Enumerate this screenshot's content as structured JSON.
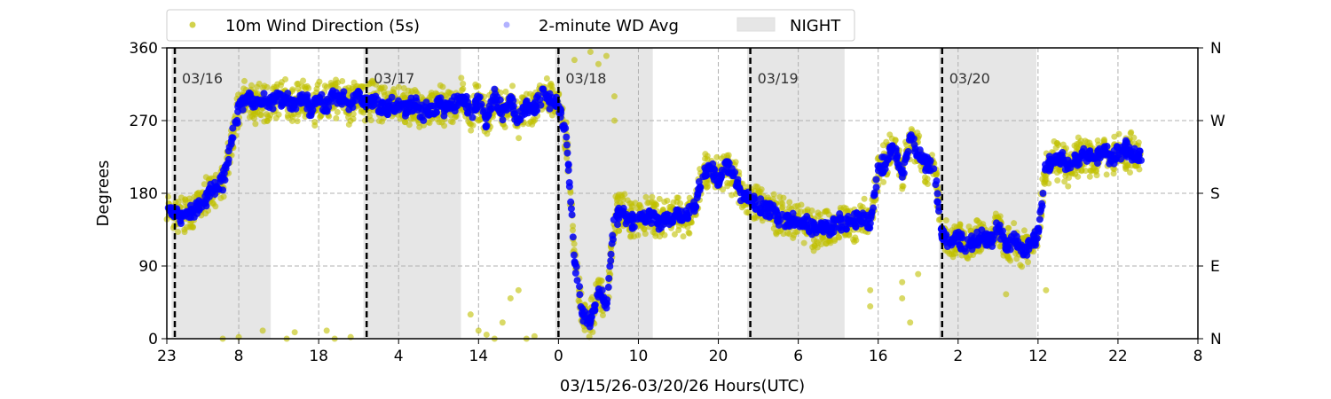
{
  "chart_data": {
    "type": "scatter",
    "title": "",
    "xlabel": "03/15/26-03/20/26  Hours(UTC)",
    "ylabel": "Degrees",
    "x_units": "hours since 03/15 23:00 UTC",
    "xlim": [
      0,
      129
    ],
    "ylim": [
      0,
      360
    ],
    "x_ticks": [
      0,
      9,
      19,
      29,
      39,
      49,
      59,
      69,
      79,
      89,
      99,
      109,
      119,
      129
    ],
    "x_tick_labels": [
      "23",
      "8",
      "18",
      "4",
      "14",
      "0",
      "10",
      "20",
      "6",
      "16",
      "2",
      "12",
      "22",
      "8"
    ],
    "y_ticks": [
      0,
      90,
      180,
      270,
      360
    ],
    "y_tick_labels": [
      "0",
      "90",
      "180",
      "270",
      "360"
    ],
    "y2_tick_labels": [
      "N",
      "E",
      "S",
      "W",
      "N"
    ],
    "grid": true,
    "legend_placement": "top-center, above plot",
    "legend": [
      {
        "label": "10m Wind Direction (5s)",
        "color": "#bfbf00"
      },
      {
        "label": "2-minute WD Avg",
        "color": "#0000ff"
      },
      {
        "label": "NIGHT",
        "color": "#e6e6e6"
      }
    ],
    "day_markers": [
      {
        "hour": 1,
        "label": "03/16"
      },
      {
        "hour": 25,
        "label": "03/17"
      },
      {
        "hour": 49,
        "label": "03/18"
      },
      {
        "hour": 73,
        "label": "03/19"
      },
      {
        "hour": 97,
        "label": "03/20"
      }
    ],
    "night_bands": [
      [
        0.6,
        13
      ],
      [
        24.6,
        36.8
      ],
      [
        48.6,
        60.8
      ],
      [
        72.6,
        84.8
      ],
      [
        96.6,
        108.8
      ]
    ],
    "series": [
      {
        "name": "2-minute WD Avg",
        "hourly_mean_deg": [
          160,
          155,
          152,
          158,
          165,
          175,
          185,
          195,
          240,
          285,
          300,
          290,
          295,
          290,
          300,
          295,
          290,
          300,
          285,
          295,
          290,
          300,
          295,
          290,
          300,
          290,
          295,
          285,
          290,
          290,
          285,
          290,
          280,
          285,
          290,
          285,
          290,
          300,
          280,
          295,
          270,
          300,
          280,
          295,
          270,
          290,
          285,
          300,
          295,
          290,
          250,
          100,
          30,
          20,
          60,
          40,
          150,
          155,
          145,
          150,
          155,
          150,
          145,
          150,
          155,
          150,
          160,
          205,
          210,
          195,
          215,
          200,
          175,
          170,
          165,
          160,
          155,
          150,
          145,
          145,
          140,
          135,
          140,
          135,
          145,
          140,
          145,
          150,
          140,
          210,
          220,
          240,
          200,
          250,
          230,
          215,
          210,
          130,
          120,
          125,
          115,
          120,
          125,
          120,
          140,
          115,
          120,
          110,
          115,
          130,
          215,
          220,
          225,
          210,
          225,
          230,
          220,
          235,
          225,
          230,
          235,
          225
        ],
        "scatter_deg": 12
      },
      {
        "name": "10m Wind Direction (5s)",
        "spread_deg": 28,
        "outliers": [
          [
            7,
            0
          ],
          [
            9,
            2
          ],
          [
            12,
            10
          ],
          [
            15,
            0
          ],
          [
            16,
            8
          ],
          [
            20,
            10
          ],
          [
            21,
            0
          ],
          [
            23,
            2
          ],
          [
            38,
            30
          ],
          [
            39,
            10
          ],
          [
            40,
            5
          ],
          [
            41,
            0
          ],
          [
            42,
            20
          ],
          [
            43,
            50
          ],
          [
            44,
            60
          ],
          [
            45,
            0
          ],
          [
            46,
            3
          ],
          [
            54,
            340
          ],
          [
            55,
            350
          ],
          [
            53,
            355
          ],
          [
            51,
            345
          ],
          [
            56,
            270
          ],
          [
            56,
            300
          ],
          [
            88,
            60
          ],
          [
            88,
            40
          ],
          [
            92,
            50
          ],
          [
            92,
            70
          ],
          [
            93,
            20
          ],
          [
            94,
            80
          ],
          [
            86,
            120
          ],
          [
            105,
            55
          ],
          [
            110,
            60
          ]
        ]
      }
    ]
  }
}
